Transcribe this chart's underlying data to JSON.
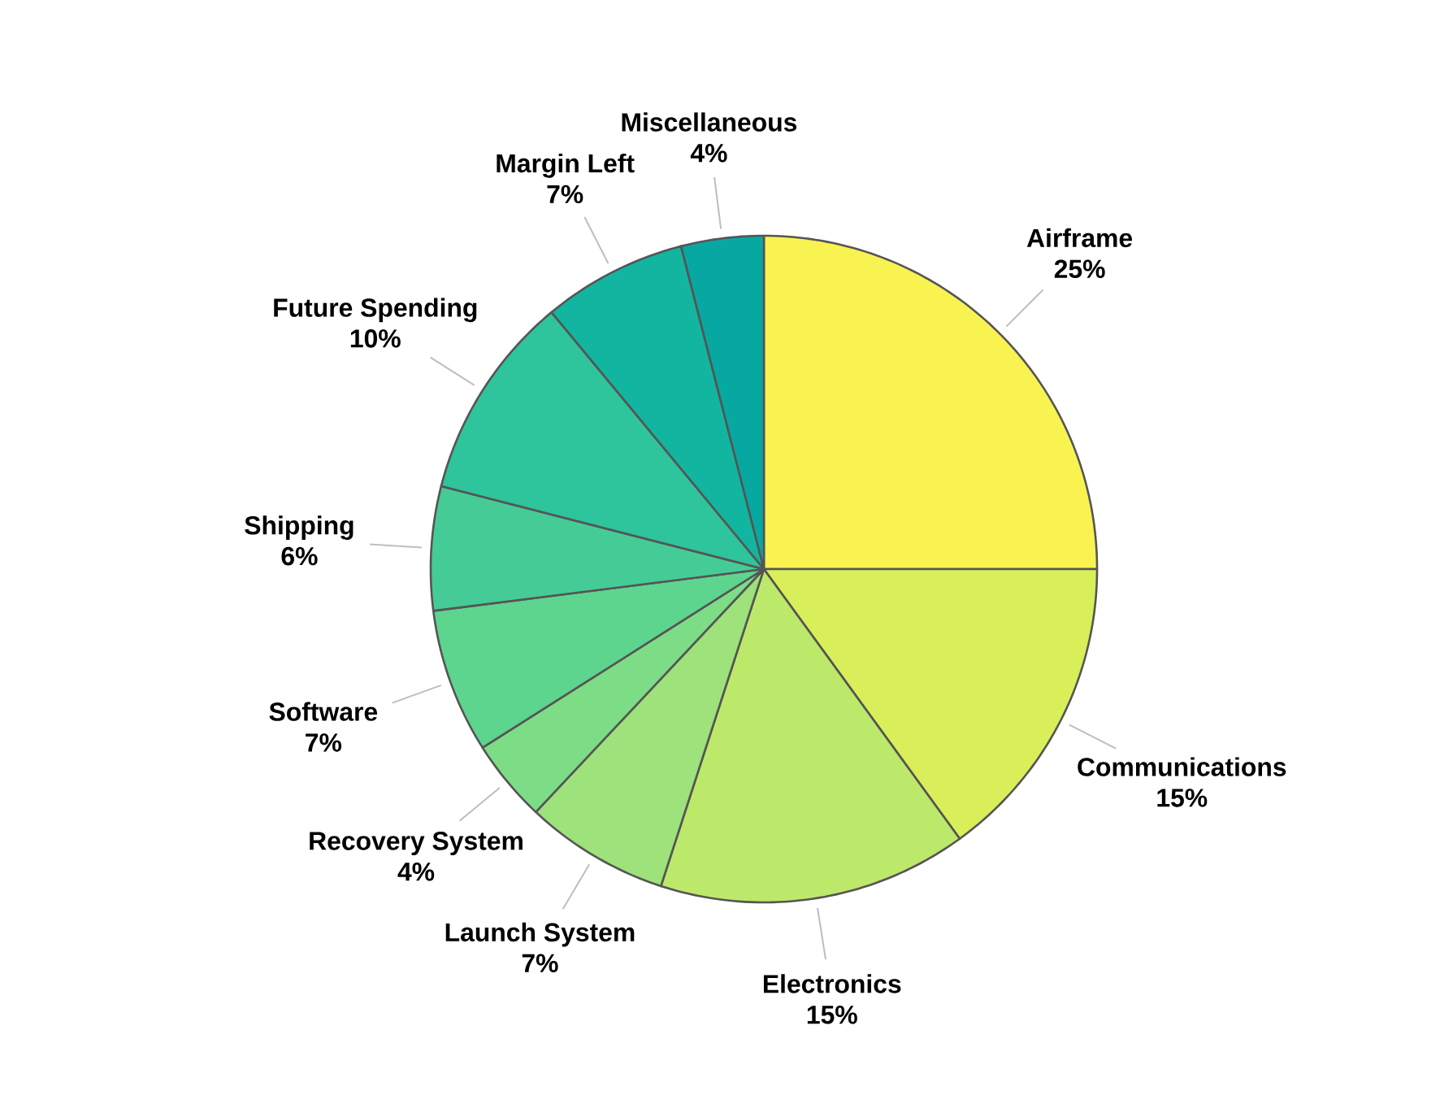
{
  "chart_data": {
    "type": "pie",
    "categories": [
      "Airframe",
      "Communications",
      "Electronics",
      "Launch System",
      "Recovery System",
      "Software",
      "Shipping",
      "Future Spending",
      "Margin Left",
      "Miscellaneous"
    ],
    "values": [
      25,
      15,
      15,
      7,
      4,
      7,
      6,
      10,
      7,
      4
    ],
    "value_labels": [
      "25%",
      "15%",
      "15%",
      "7%",
      "4%",
      "7%",
      "6%",
      "10%",
      "7%",
      "4%"
    ],
    "colors": [
      "#f9f352",
      "#d9ef5a",
      "#bde96a",
      "#9de27a",
      "#7ddd86",
      "#5dd58e",
      "#45cc96",
      "#2ec49c",
      "#12b6a0",
      "#07a8a2"
    ]
  }
}
